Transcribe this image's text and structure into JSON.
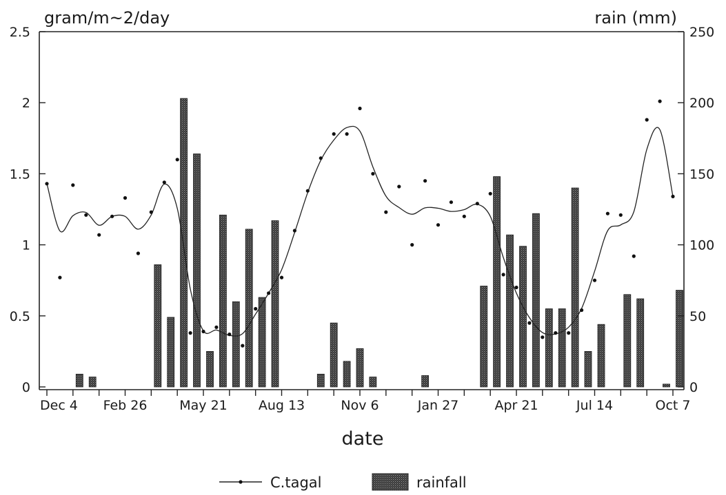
{
  "chart_data": {
    "type": "bar+line",
    "title": "",
    "left_axis_label": "gram/m~2/day",
    "right_axis_label": "rain (mm)",
    "xlabel": "date",
    "x_tick_labels": [
      "Dec 4",
      "Feb 26",
      "May 21",
      "Aug 13",
      "Nov 6",
      "Jan 27",
      "Apr 21",
      "Jul 14",
      "Oct 7"
    ],
    "y_left_ticks": [
      "0",
      "0.5",
      "1",
      "1.5",
      "2",
      "2.5"
    ],
    "y_right_ticks": [
      "0",
      "50",
      "100",
      "150",
      "200",
      "250"
    ],
    "y_left_range": [
      0,
      2.5
    ],
    "y_right_range": [
      0,
      250
    ],
    "x_range_weeks": [
      0,
      96
    ],
    "legend": {
      "position": "bottom-center",
      "line_label": "C.tagal",
      "bar_label": "rainfall"
    },
    "series": [
      {
        "name": "C.tagal",
        "kind": "scatter+smooth-line",
        "axis": "left",
        "points": [
          [
            0,
            1.43
          ],
          [
            2,
            0.77
          ],
          [
            4,
            1.42
          ],
          [
            6,
            1.21
          ],
          [
            8,
            1.07
          ],
          [
            10,
            1.2
          ],
          [
            12,
            1.33
          ],
          [
            14,
            0.94
          ],
          [
            16,
            1.23
          ],
          [
            18,
            1.44
          ],
          [
            20,
            1.6
          ],
          [
            22,
            0.38
          ],
          [
            24,
            0.39
          ],
          [
            26,
            0.42
          ],
          [
            28,
            0.37
          ],
          [
            30,
            0.29
          ],
          [
            32,
            0.55
          ],
          [
            34,
            0.66
          ],
          [
            36,
            0.77
          ],
          [
            38,
            1.1
          ],
          [
            40,
            1.38
          ],
          [
            42,
            1.61
          ],
          [
            44,
            1.78
          ],
          [
            46,
            1.78
          ],
          [
            48,
            1.96
          ],
          [
            50,
            1.5
          ],
          [
            52,
            1.23
          ],
          [
            54,
            1.41
          ],
          [
            56,
            1.0
          ],
          [
            58,
            1.45
          ],
          [
            60,
            1.14
          ],
          [
            62,
            1.3
          ],
          [
            64,
            1.2
          ],
          [
            66,
            1.29
          ],
          [
            68,
            1.36
          ],
          [
            70,
            0.79
          ],
          [
            72,
            0.7
          ],
          [
            74,
            0.45
          ],
          [
            76,
            0.35
          ],
          [
            78,
            0.38
          ],
          [
            80,
            0.38
          ],
          [
            82,
            0.54
          ],
          [
            84,
            0.75
          ],
          [
            86,
            1.22
          ],
          [
            88,
            1.21
          ],
          [
            90,
            0.92
          ],
          [
            92,
            1.88
          ],
          [
            94,
            2.01
          ],
          [
            96,
            1.34
          ]
        ]
      },
      {
        "name": "rainfall",
        "kind": "bar",
        "axis": "right",
        "points": [
          [
            5,
            9
          ],
          [
            7,
            7
          ],
          [
            17,
            86
          ],
          [
            19,
            49
          ],
          [
            21,
            203
          ],
          [
            23,
            164
          ],
          [
            25,
            25
          ],
          [
            27,
            121
          ],
          [
            29,
            60
          ],
          [
            31,
            111
          ],
          [
            33,
            63
          ],
          [
            35,
            117
          ],
          [
            42,
            9
          ],
          [
            44,
            45
          ],
          [
            46,
            18
          ],
          [
            48,
            27
          ],
          [
            50,
            7
          ],
          [
            58,
            8
          ],
          [
            67,
            71
          ],
          [
            69,
            148
          ],
          [
            71,
            107
          ],
          [
            73,
            99
          ],
          [
            75,
            122
          ],
          [
            77,
            55
          ],
          [
            79,
            55
          ],
          [
            81,
            140
          ],
          [
            83,
            25
          ],
          [
            85,
            44
          ],
          [
            89,
            65
          ],
          [
            91,
            62
          ],
          [
            95,
            2
          ],
          [
            97,
            68
          ]
        ]
      }
    ]
  }
}
